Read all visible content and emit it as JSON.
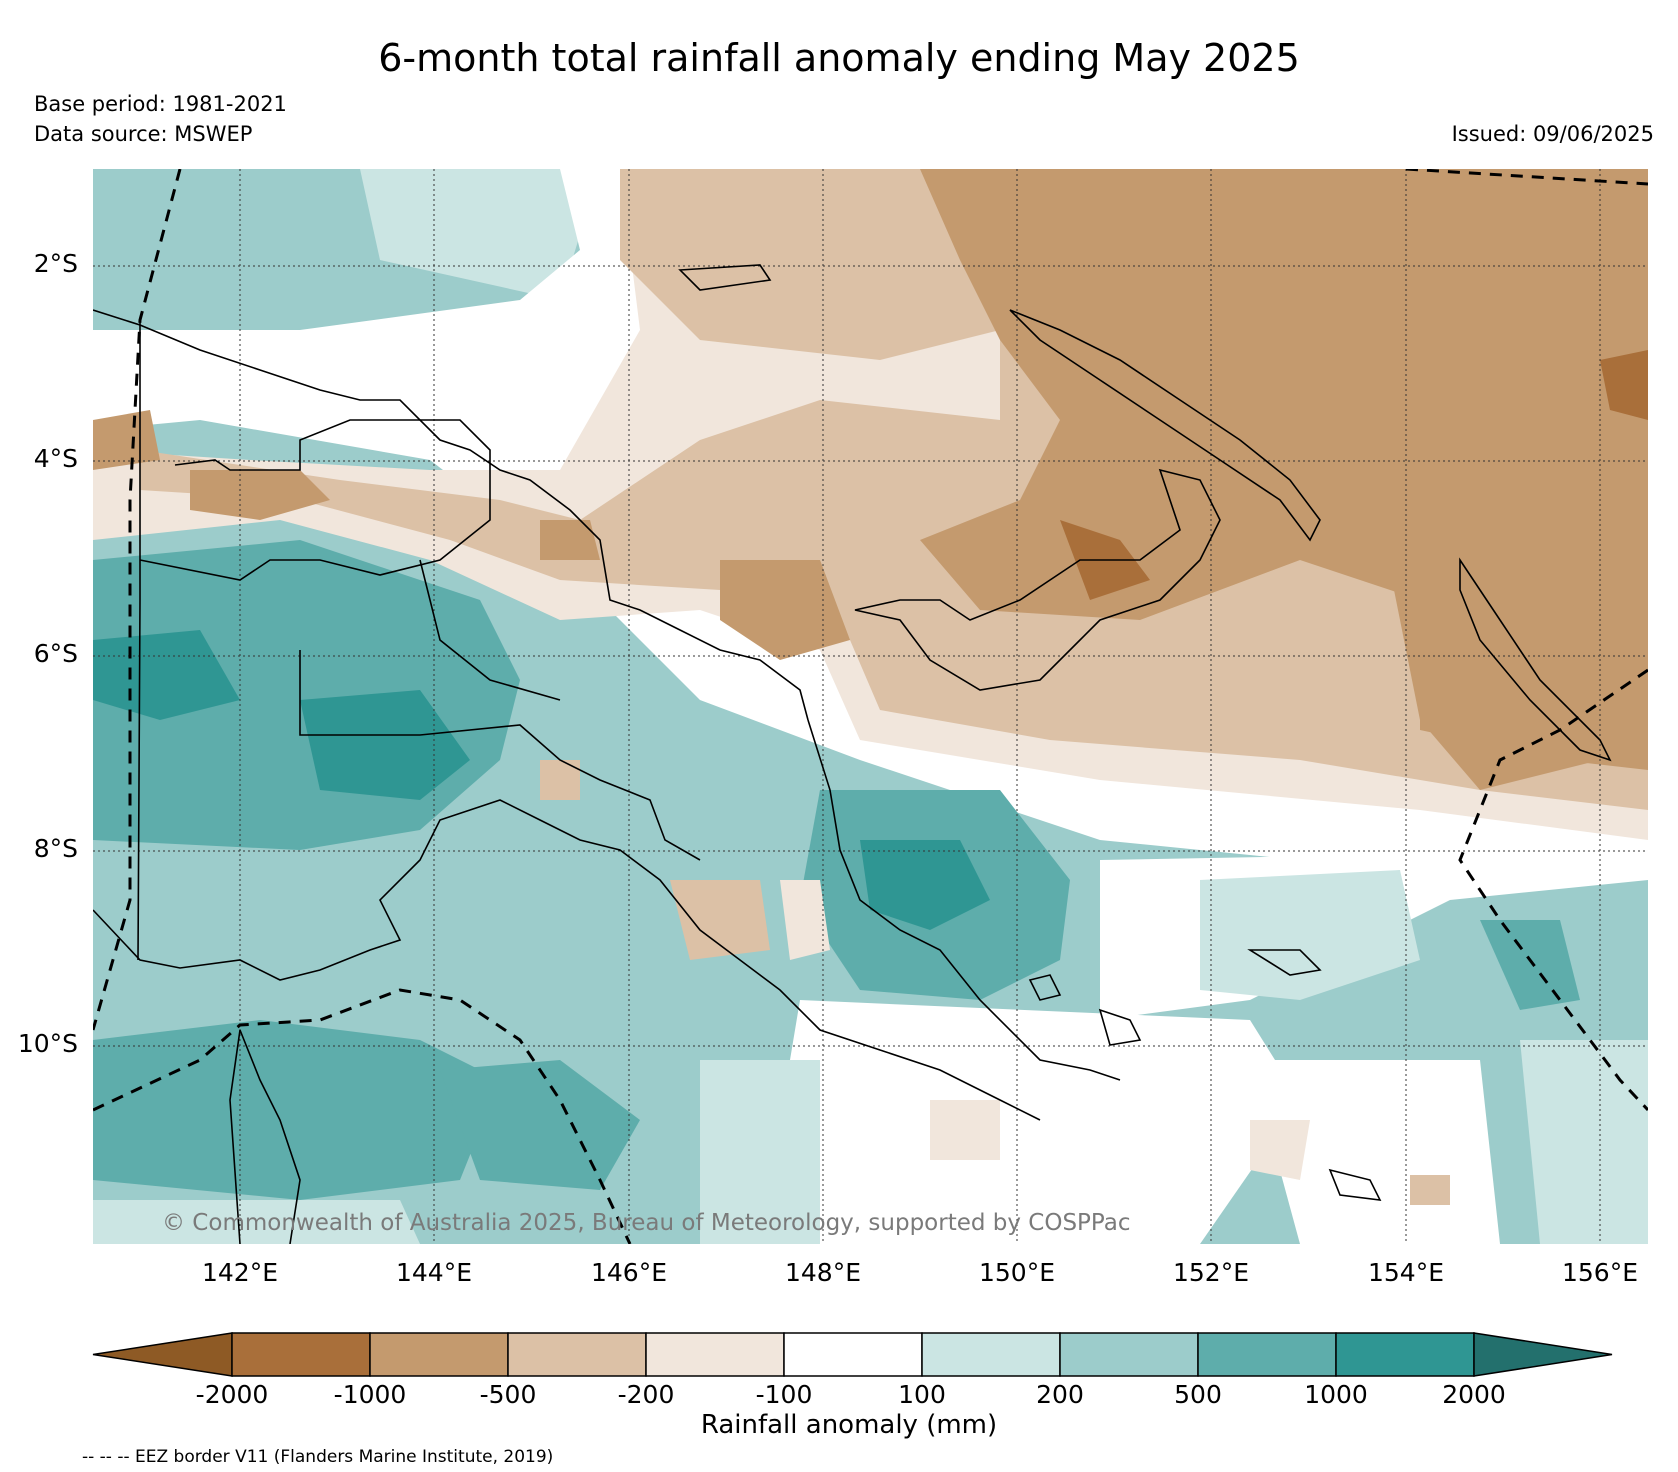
{
  "header": {
    "title": "6-month total rainfall anomaly ending May 2025",
    "base_period": "Base period: 1981-2021",
    "data_source": "Data source: MSWEP",
    "issued": "Issued: 09/06/2025"
  },
  "map": {
    "lat_labels": [
      "2°S",
      "4°S",
      "6°S",
      "8°S",
      "10°S"
    ],
    "lon_labels": [
      "142°E",
      "144°E",
      "146°E",
      "148°E",
      "150°E",
      "152°E",
      "154°E",
      "156°E"
    ],
    "lat_range": [
      -12,
      -1
    ],
    "lon_range": [
      140.5,
      156.5
    ],
    "grid": true,
    "copyright": "© Commonwealth of Australia 2025, Bureau of Meteorology, supported by COSPPac"
  },
  "colorbar": {
    "title": "Rainfall anomaly (mm)",
    "tick_labels": [
      "-2000",
      "-1000",
      "-500",
      "-200",
      "-100",
      "100",
      "200",
      "500",
      "1000",
      "2000"
    ],
    "colors": [
      "#8e5a25",
      "#a96f3a",
      "#c49a6e",
      "#dcc1a6",
      "#f1e6dc",
      "#ffffff",
      "#cbe5e3",
      "#9ccccb",
      "#5eadab",
      "#2f9693",
      "#23706d"
    ]
  },
  "footer": {
    "eez_note": "-- -- -- EEZ border V11 (Flanders Marine Institute, 2019)"
  }
}
